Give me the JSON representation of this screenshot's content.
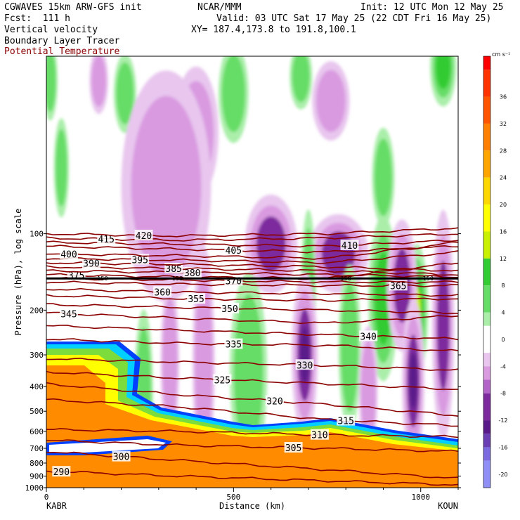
{
  "header": {
    "model": "CGWAVES 15km ARW-GFS init",
    "org": "NCAR/MMM",
    "init": "Init: 12 UTC Mon 12 May 25",
    "fcst": "Fcst:  111 h",
    "valid": "Valid: 03 UTC Sat 17 May 25 (22 CDT Fri 16 May 25)",
    "field1": "Vertical velocity",
    "field2": "Boundary Layer Tracer",
    "field3": "Potential Temperature",
    "xy": "XY= 187.4,173.8 to 191.8,100.1",
    "field3_color": "#8b0000"
  },
  "chart_data": {
    "type": "heatmap",
    "xlabel": "Distance (km)",
    "ylabel": "Pressure (hPa), log scale",
    "xlim": [
      0,
      1100
    ],
    "ylim": [
      1000,
      20
    ],
    "log_y": true,
    "x_ticks": [
      0,
      500,
      1000
    ],
    "x_tick_labels": [
      "0",
      "500",
      "1000"
    ],
    "x_endpoints": {
      "left": "KABR",
      "right": "KOUN"
    },
    "y_ticks": [
      100,
      200,
      300,
      400,
      500,
      600,
      700,
      800,
      900,
      1000
    ],
    "y_tick_labels": [
      "100",
      "200",
      "300",
      "400",
      "500",
      "600",
      "700",
      "800",
      "900",
      "1000"
    ],
    "colorbar": {
      "units": "cm s⁻¹",
      "min": -22,
      "max": 42,
      "tick_values": [
        36,
        32,
        28,
        24,
        20,
        16,
        12,
        8,
        4,
        0,
        -4,
        -8,
        -12,
        -16,
        -20
      ],
      "tick_labels": [
        "36",
        "32",
        "28",
        "24",
        "20",
        "16",
        "12",
        "8",
        "4",
        "0",
        "-4",
        "-8",
        "-12",
        "-16",
        "-20"
      ],
      "bands": [
        {
          "from": 40,
          "to": 42,
          "color": "#ff0000"
        },
        {
          "from": 36,
          "to": 40,
          "color": "#ff3300"
        },
        {
          "from": 32,
          "to": 36,
          "color": "#ff5500"
        },
        {
          "from": 28,
          "to": 32,
          "color": "#ff7f00"
        },
        {
          "from": 24,
          "to": 28,
          "color": "#ffa500"
        },
        {
          "from": 20,
          "to": 24,
          "color": "#ffd700"
        },
        {
          "from": 16,
          "to": 20,
          "color": "#ffff00"
        },
        {
          "from": 12,
          "to": 16,
          "color": "#c8f000"
        },
        {
          "from": 8,
          "to": 12,
          "color": "#33cc33"
        },
        {
          "from": 4,
          "to": 8,
          "color": "#66dd66"
        },
        {
          "from": 2,
          "to": 4,
          "color": "#aaeeaa"
        },
        {
          "from": -2,
          "to": 2,
          "color": "#ffffff"
        },
        {
          "from": -4,
          "to": -2,
          "color": "#e8c6ee"
        },
        {
          "from": -6,
          "to": -4,
          "color": "#d99ae0"
        },
        {
          "from": -8,
          "to": -6,
          "color": "#b364c8"
        },
        {
          "from": -12,
          "to": -8,
          "color": "#7d2a9e"
        },
        {
          "from": -14,
          "to": -12,
          "color": "#5a1a8a"
        },
        {
          "from": -16,
          "to": -14,
          "color": "#6b3fb3"
        },
        {
          "from": -18,
          "to": -16,
          "color": "#7b6ae0"
        },
        {
          "from": -22,
          "to": -18,
          "color": "#8f8ff5"
        }
      ]
    },
    "tracer_colors": {
      "orange": "#ff8c00",
      "yellow": "#ffff00",
      "green": "#7cdc3c",
      "cyan": "#00d0ff",
      "blue": "#0040ff"
    },
    "tropopause_marker": {
      "pressure": 150,
      "labels": [
        "150",
        "150",
        "150",
        "150"
      ]
    },
    "theta_contours": [
      {
        "label": "290",
        "pressure": [
          860,
          900,
          940,
          975
        ],
        "label_x": 40
      },
      {
        "label": "300",
        "pressure": [
          720,
          780,
          850,
          920
        ],
        "label_x": 200
      },
      {
        "label": "305",
        "pressure": [
          650,
          680,
          700,
          720
        ],
        "label_x": 660
      },
      {
        "label": "310",
        "pressure": [
          590,
          600,
          620,
          630
        ],
        "label_x": 730
      },
      {
        "label": "315",
        "pressure": [
          450,
          480,
          540,
          570
        ],
        "label_x": 800
      },
      {
        "label": "320",
        "pressure": [
          390,
          430,
          470,
          520
        ],
        "label_x": 610
      },
      {
        "label": "325",
        "pressure": [
          350,
          370,
          390,
          410
        ],
        "label_x": 470
      },
      {
        "label": "330",
        "pressure": [
          310,
          320,
          330,
          345
        ],
        "label_x": 690
      },
      {
        "label": "335",
        "pressure": [
          260,
          270,
          275,
          290
        ],
        "label_x": 500
      },
      {
        "label": "340",
        "pressure": [
          230,
          240,
          250,
          260
        ],
        "label_x": 860
      },
      {
        "label": "345",
        "pressure": [
          205,
          215,
          225,
          210
        ],
        "label_x": 60
      },
      {
        "label": "350",
        "pressure": [
          190,
          195,
          200,
          205
        ],
        "label_x": 490
      },
      {
        "label": "355",
        "pressure": [
          175,
          180,
          183,
          180
        ],
        "label_x": 400
      },
      {
        "label": "360",
        "pressure": [
          165,
          170,
          172,
          175
        ],
        "label_x": 310
      },
      {
        "label": "365",
        "pressure": [
          155,
          158,
          160,
          160
        ],
        "label_x": 940
      },
      {
        "label": "370",
        "pressure": [
          150,
          152,
          155,
          155
        ],
        "label_x": 500
      },
      {
        "label": "375",
        "pressure": [
          145,
          148,
          150,
          130
        ],
        "label_x": 80
      },
      {
        "label": "380",
        "pressure": [
          140,
          142,
          145,
          148
        ],
        "label_x": 390
      },
      {
        "label": "385",
        "pressure": [
          135,
          137,
          140,
          145
        ],
        "label_x": 340
      },
      {
        "label": "390",
        "pressure": [
          130,
          132,
          135,
          140
        ],
        "label_x": 120
      },
      {
        "label": "395",
        "pressure": [
          125,
          127,
          130,
          118
        ],
        "label_x": 250
      },
      {
        "label": "400",
        "pressure": [
          120,
          122,
          125,
          108
        ],
        "label_x": 60
      },
      {
        "label": "405",
        "pressure": [
          112,
          115,
          118,
          112
        ],
        "label_x": 500
      },
      {
        "label": "410",
        "pressure": [
          108,
          110,
          112,
          106
        ],
        "label_x": 810
      },
      {
        "label": "415",
        "pressure": [
          104,
          106,
          104,
          100
        ],
        "label_x": 160
      },
      {
        "label": "420",
        "pressure": [
          100,
          102,
          100,
          95
        ],
        "label_x": 260
      }
    ],
    "w_features": [
      {
        "kind": "up",
        "x": 10,
        "p": 25,
        "rx": 20,
        "rp": 0.12,
        "w": 6
      },
      {
        "kind": "down",
        "x": 140,
        "p": 25,
        "rx": 25,
        "rp": 0.1,
        "w": -5
      },
      {
        "kind": "up",
        "x": 210,
        "p": 28,
        "rx": 30,
        "rp": 0.12,
        "w": 4
      },
      {
        "kind": "up",
        "x": 500,
        "p": 28,
        "rx": 40,
        "rp": 0.15,
        "w": 5
      },
      {
        "kind": "up",
        "x": 680,
        "p": 24,
        "rx": 30,
        "rp": 0.1,
        "w": 4
      },
      {
        "kind": "up",
        "x": 1060,
        "p": 22,
        "rx": 35,
        "rp": 0.12,
        "w": 10
      },
      {
        "kind": "down",
        "x": 760,
        "p": 30,
        "rx": 50,
        "rp": 0.12,
        "w": -5
      },
      {
        "kind": "down",
        "x": 400,
        "p": 40,
        "rx": 60,
        "rp": 0.2,
        "w": -3
      },
      {
        "kind": "up",
        "x": 40,
        "p": 55,
        "rx": 20,
        "rp": 0.15,
        "w": 4
      },
      {
        "kind": "up",
        "x": 900,
        "p": 60,
        "rx": 30,
        "rp": 0.15,
        "w": 4
      },
      {
        "kind": "down",
        "x": 320,
        "p": 65,
        "rx": 120,
        "rp": 0.35,
        "w": -3
      },
      {
        "kind": "down",
        "x": 600,
        "p": 110,
        "rx": 70,
        "rp": 0.15,
        "w": -7
      },
      {
        "kind": "down",
        "x": 780,
        "p": 120,
        "rx": 80,
        "rp": 0.12,
        "w": -8
      },
      {
        "kind": "up",
        "x": 700,
        "p": 170,
        "rx": 20,
        "rp": 0.25,
        "w": 6
      },
      {
        "kind": "up",
        "x": 900,
        "p": 180,
        "rx": 40,
        "rp": 0.25,
        "w": 8
      },
      {
        "kind": "up",
        "x": 990,
        "p": 200,
        "rx": 30,
        "rp": 0.2,
        "w": 14
      },
      {
        "kind": "down",
        "x": 950,
        "p": 160,
        "rx": 40,
        "rp": 0.2,
        "w": -8
      },
      {
        "kind": "down",
        "x": 1060,
        "p": 230,
        "rx": 30,
        "rp": 0.35,
        "w": -8
      },
      {
        "kind": "down",
        "x": 690,
        "p": 300,
        "rx": 35,
        "rp": 0.25,
        "w": -12
      },
      {
        "kind": "up",
        "x": 810,
        "p": 280,
        "rx": 30,
        "rp": 0.25,
        "w": 5
      },
      {
        "kind": "down",
        "x": 980,
        "p": 380,
        "rx": 30,
        "rp": 0.25,
        "w": -12
      },
      {
        "kind": "down",
        "x": 330,
        "p": 320,
        "rx": 25,
        "rp": 0.25,
        "w": -6
      },
      {
        "kind": "down",
        "x": 420,
        "p": 320,
        "rx": 30,
        "rp": 0.35,
        "w": -5
      },
      {
        "kind": "up",
        "x": 260,
        "p": 420,
        "rx": 25,
        "rp": 0.25,
        "w": 4
      },
      {
        "kind": "up",
        "x": 540,
        "p": 350,
        "rx": 50,
        "rp": 0.3,
        "w": 3
      },
      {
        "kind": "down",
        "x": 860,
        "p": 420,
        "rx": 25,
        "rp": 0.2,
        "w": -5
      }
    ]
  }
}
